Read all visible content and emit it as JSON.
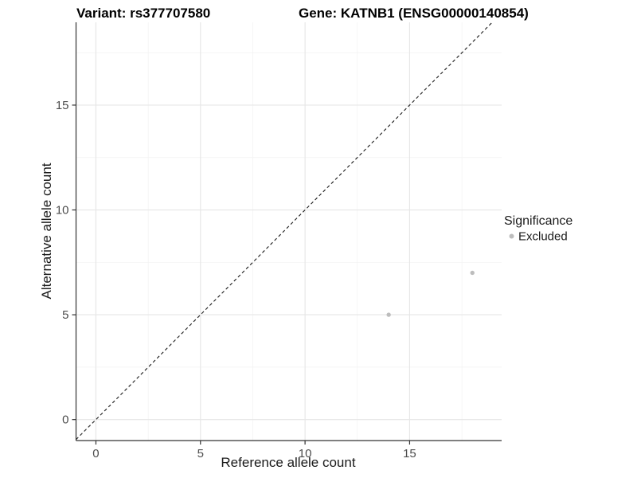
{
  "chart_data": {
    "type": "scatter",
    "titles": {
      "left": "Variant: rs377707580",
      "right": "Gene: KATNB1 (ENSG00000140854)"
    },
    "xlabel": "Reference allele count",
    "ylabel": "Alternative allele count",
    "xlim": [
      -0.95,
      19.4
    ],
    "ylim": [
      -1.0,
      18.95
    ],
    "x_ticks": {
      "values": [
        0,
        5,
        10,
        15
      ],
      "labels": [
        "0",
        "5",
        "10",
        "15"
      ]
    },
    "y_ticks": {
      "values": [
        0,
        5,
        10,
        15
      ],
      "labels": [
        "0",
        "5",
        "10",
        "15"
      ]
    },
    "x_minor": [
      2.5,
      7.5,
      12.5,
      17.5
    ],
    "y_minor": [
      2.5,
      7.5,
      12.5,
      17.5
    ],
    "grid": true,
    "identity_line": {
      "style": "dashed",
      "equation": "y = x"
    },
    "series": [
      {
        "name": "Excluded",
        "color": "#BDBDBD",
        "points": [
          {
            "x": 14,
            "y": 5
          },
          {
            "x": 18,
            "y": 7
          }
        ]
      }
    ],
    "legend": {
      "position": "right",
      "title": "Significance",
      "items": [
        {
          "label": "Excluded",
          "color": "#BDBDBD"
        }
      ]
    },
    "colors": {
      "background": "#FFFFFF",
      "grid_major": "#E6E6E6",
      "grid_minor": "#F2F2F2",
      "axis_line": "#333333",
      "tick_mark": "#333333",
      "tick_text": "#4D4D4D",
      "title_text": "#000000",
      "identity_line": "#1A1A1A"
    }
  }
}
